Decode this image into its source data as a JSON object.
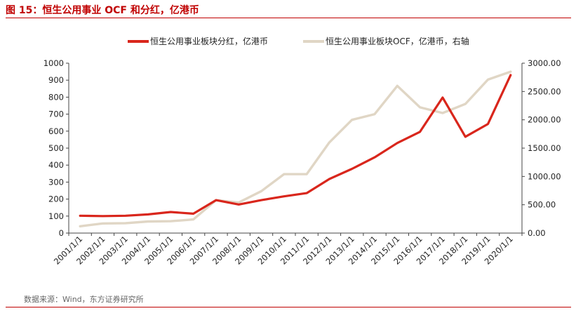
{
  "figure": {
    "title": "图 15：恒生公用事业 OCF 和分红，亿港币",
    "source": "数据来源：Wind，东方证券研究所"
  },
  "colors": {
    "accent": "#c00000",
    "series_dividend": "#d9261c",
    "series_ocf": "#e0d6c5"
  },
  "chart_data": {
    "type": "line",
    "x": [
      "2001/1/1",
      "2002/1/1",
      "2003/1/1",
      "2004/1/1",
      "2005/1/1",
      "2006/1/1",
      "2007/1/1",
      "2008/1/1",
      "2009/1/1",
      "2010/1/1",
      "2011/1/1",
      "2012/1/1",
      "2013/1/1",
      "2014/1/1",
      "2015/1/1",
      "2016/1/1",
      "2017/1/1",
      "2018/1/1",
      "2019/1/1",
      "2020/1/1"
    ],
    "series": [
      {
        "name": "恒生公用事业板块分红，亿港币",
        "axis": "left",
        "color": "#d9261c",
        "values": [
          102,
          100,
          102,
          110,
          124,
          114,
          194,
          168,
          194,
          216,
          235,
          318,
          378,
          446,
          530,
          596,
          798,
          567,
          642,
          930
        ]
      },
      {
        "name": "恒生公用事业板块OCF，亿港币，右轴",
        "axis": "right",
        "color": "#e0d6c5",
        "values": [
          120,
          170,
          175,
          205,
          210,
          240,
          580,
          540,
          740,
          1040,
          1040,
          1600,
          2000,
          2100,
          2600,
          2220,
          2120,
          2280,
          2710,
          2850
        ]
      }
    ],
    "y_left": {
      "min": 0,
      "max": 1000,
      "ticks": [
        "0",
        "100",
        "200",
        "300",
        "400",
        "500",
        "600",
        "700",
        "800",
        "900",
        "1000"
      ]
    },
    "y_right": {
      "min": 0,
      "max": 3000,
      "ticks": [
        "0.00",
        "500.00",
        "1000.00",
        "1500.00",
        "2000.00",
        "2500.00",
        "3000.00"
      ]
    },
    "grid": false,
    "legend_position": "top"
  }
}
